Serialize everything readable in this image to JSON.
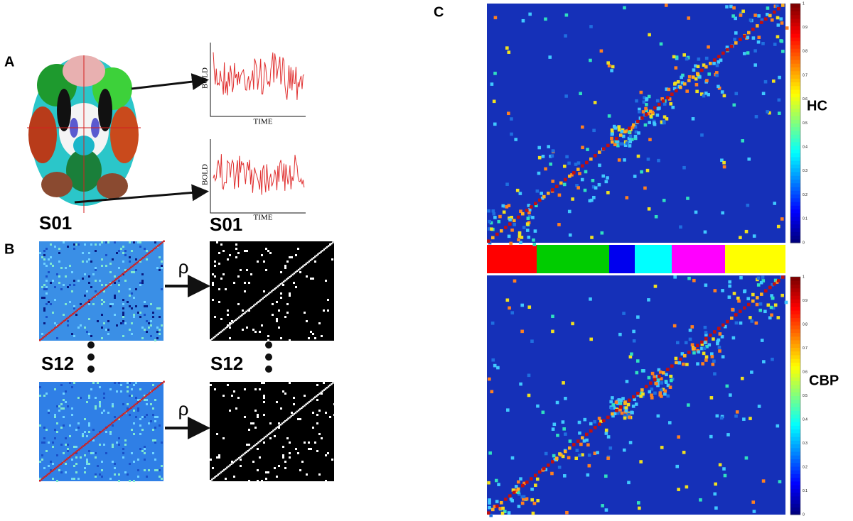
{
  "panel_a": {
    "label": "A",
    "slice_label": "S01",
    "subject_label": "S01",
    "signals": [
      {
        "y_label": "BOLD",
        "x_label": "TIME"
      },
      {
        "y_label": "BOLD",
        "x_label": "TIME"
      }
    ]
  },
  "panel_b": {
    "label": "B",
    "rho_labels": [
      "ρ",
      "ρ"
    ],
    "subject_labels": [
      "S12",
      "S12"
    ]
  },
  "panel_c": {
    "label": "C",
    "groups": [
      {
        "label": "HC",
        "colorbar_ticks": [
          "1",
          "0.9",
          "0.8",
          "0.7",
          "0.6",
          "0.5",
          "0.4",
          "0.3",
          "0.2",
          "0.1",
          "0"
        ]
      },
      {
        "label": "CBP",
        "colorbar_ticks": [
          "1",
          "0.9",
          "0.8",
          "0.7",
          "0.6",
          "0.5",
          "0.4",
          "0.3",
          "0.2",
          "0.1",
          "0"
        ]
      }
    ]
  }
}
